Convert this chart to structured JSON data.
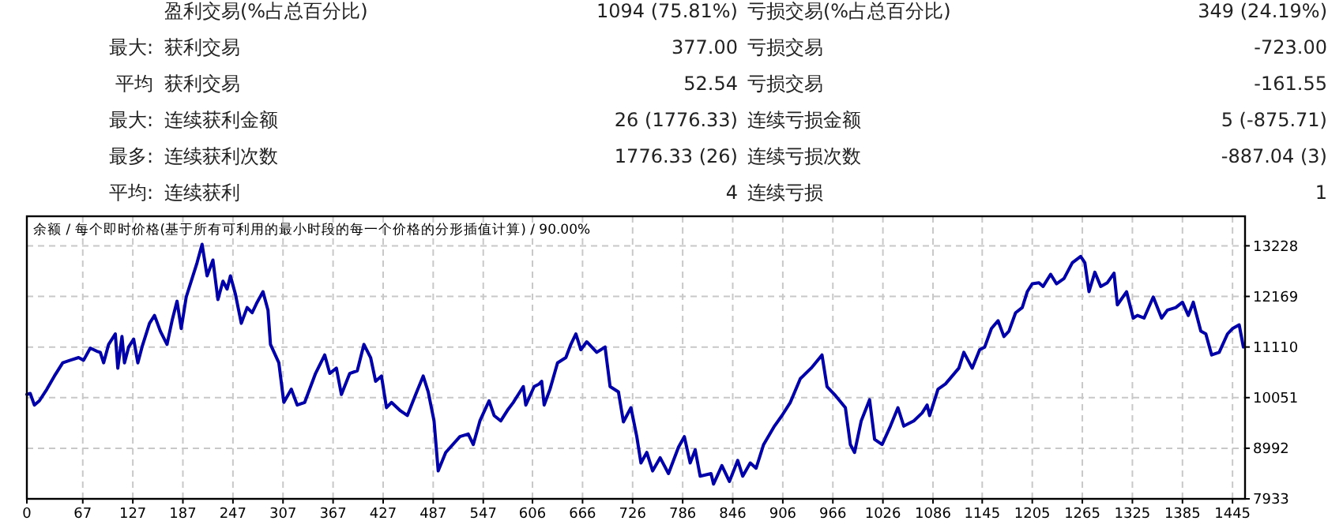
{
  "chart_data": [
    {
      "type": "other",
      "annotations": [
        "盈利交易(%占总百分比)",
        "1094 (75.81%)",
        "亏损交易(%占总百分比)",
        "349 (24.19%)",
        "最大:",
        "获利交易",
        "377.00",
        "亏损交易",
        "-723.00",
        "平均",
        "获利交易",
        "52.54",
        "亏损交易",
        "-161.55",
        "最大:",
        "连续获利金额",
        "26 (1776.33)",
        "连续亏损金额",
        "5 (-875.71)",
        "最多:",
        "连续获利次数",
        "1776.33 (26)",
        "连续亏损次数",
        "-887.04 (3)",
        "平均:",
        "连续获利",
        "4",
        "连续亏损",
        "1"
      ]
    },
    {
      "type": "line",
      "title": "余额 / 每个即时价格(基于所有可利用的最小时段的每一个价格的分形插值计算) / 90.00%",
      "grid": true,
      "line_style": "solid",
      "marker": "none",
      "xlim": [
        0,
        1460
      ],
      "ylim": [
        7933,
        13846
      ],
      "xticks": [
        0,
        67,
        127,
        187,
        247,
        307,
        367,
        427,
        487,
        547,
        606,
        666,
        726,
        786,
        846,
        906,
        966,
        1026,
        1086,
        1145,
        1205,
        1265,
        1325,
        1385,
        1445
      ],
      "yticks": [
        7933,
        8992,
        10051,
        11110,
        12169,
        13228
      ],
      "series": [
        {
          "color": "#0000a8",
          "x": [
            0,
            4,
            9,
            15,
            24,
            33,
            43,
            52,
            62,
            68,
            76,
            84,
            88,
            92,
            98,
            106,
            109,
            114,
            117,
            122,
            128,
            133,
            138,
            147,
            153,
            160,
            168,
            174,
            180,
            185,
            191,
            198,
            204,
            210,
            216,
            223,
            229,
            235,
            240,
            244,
            250,
            257,
            264,
            270,
            276,
            283,
            289,
            292,
            302,
            308,
            317,
            324,
            333,
            346,
            357,
            363,
            371,
            377,
            387,
            396,
            404,
            412,
            418,
            425,
            431,
            437,
            447,
            456,
            466,
            475,
            481,
            488,
            493,
            502,
            519,
            529,
            535,
            543,
            554,
            560,
            568,
            576,
            583,
            589,
            595,
            598,
            608,
            614,
            617,
            620,
            627,
            636,
            646,
            652,
            658,
            664,
            671,
            683,
            693,
            699,
            709,
            715,
            724,
            731,
            736,
            743,
            750,
            759,
            769,
            781,
            788,
            795,
            801,
            807,
            820,
            823,
            833,
            842,
            852,
            858,
            867,
            874,
            883,
            896,
            905,
            915,
            927,
            940,
            953,
            959,
            968,
            981,
            987,
            992,
            1000,
            1010,
            1016,
            1025,
            1035,
            1044,
            1051,
            1063,
            1073,
            1079,
            1082,
            1092,
            1101,
            1109,
            1117,
            1123,
            1133,
            1142,
            1148,
            1156,
            1164,
            1171,
            1177,
            1185,
            1193,
            1199,
            1205,
            1213,
            1218,
            1227,
            1234,
            1243,
            1253,
            1263,
            1268,
            1273,
            1280,
            1287,
            1295,
            1303,
            1307,
            1318,
            1326,
            1331,
            1339,
            1350,
            1360,
            1367,
            1377,
            1385,
            1392,
            1398,
            1407,
            1413,
            1420,
            1429,
            1439,
            1445,
            1453,
            1458
          ],
          "values": [
            10117,
            10139,
            9896,
            9985,
            10227,
            10503,
            10779,
            10834,
            10889,
            10834,
            11088,
            11021,
            10999,
            10779,
            11165,
            11385,
            10668,
            11330,
            10779,
            11110,
            11275,
            10779,
            11110,
            11606,
            11771,
            11441,
            11165,
            11661,
            12069,
            11496,
            12157,
            12544,
            12874,
            13260,
            12599,
            12930,
            12102,
            12488,
            12323,
            12599,
            12213,
            11606,
            11937,
            11827,
            12047,
            12268,
            11882,
            11165,
            10779,
            9951,
            10227,
            9896,
            9951,
            10558,
            10944,
            10558,
            10668,
            10117,
            10558,
            10613,
            11165,
            10889,
            10393,
            10503,
            9841,
            9951,
            9786,
            9676,
            10117,
            10503,
            10172,
            9565,
            8518,
            8904,
            9235,
            9290,
            9069,
            9565,
            9985,
            9676,
            9565,
            9786,
            9951,
            10117,
            10282,
            9896,
            10282,
            10338,
            10393,
            9896,
            10227,
            10779,
            10889,
            11165,
            11385,
            11054,
            11220,
            10999,
            11110,
            10282,
            10172,
            9543,
            9841,
            9235,
            8683,
            8904,
            8518,
            8793,
            8462,
            9014,
            9235,
            8683,
            8959,
            8407,
            8462,
            8242,
            8628,
            8297,
            8738,
            8407,
            8683,
            8573,
            9069,
            9455,
            9676,
            9951,
            10448,
            10668,
            10944,
            10282,
            10117,
            9841,
            9069,
            8904,
            9565,
            10007,
            9179,
            9069,
            9455,
            9841,
            9455,
            9565,
            9731,
            9896,
            9676,
            10227,
            10338,
            10503,
            10668,
            10999,
            10668,
            11054,
            11110,
            11496,
            11661,
            11330,
            11441,
            11827,
            11937,
            12268,
            12433,
            12455,
            12378,
            12632,
            12433,
            12544,
            12874,
            13007,
            12874,
            12268,
            12676,
            12378,
            12455,
            12654,
            11992,
            12268,
            11716,
            11771,
            11716,
            12157,
            11716,
            11882,
            11937,
            12047,
            11771,
            12047,
            11441,
            11385,
            10944,
            10999,
            11385,
            11496,
            11573,
            11110
          ]
        }
      ]
    }
  ]
}
